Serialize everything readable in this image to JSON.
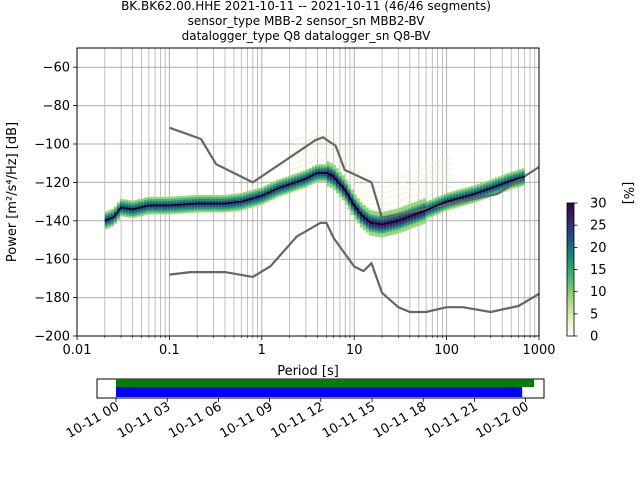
{
  "title_lines": [
    "BK.BK62.00.HHE   2021-10-11 -- 2021-10-11  (46/46 segments)",
    "sensor_type MBB-2 sensor_sn MBB2-BV",
    "datalogger_type Q8 datalogger_sn Q8-BV"
  ],
  "colors": {
    "mean": "#000000",
    "noise_models": "#666666",
    "grid": "#b0b0b0",
    "coverage_top": "#008000",
    "coverage_bottom": "#0000ff",
    "colormap": [
      "#ffffff",
      "#e4f2c0",
      "#9ad27a",
      "#3fb56c",
      "#16877c",
      "#1f4f82",
      "#3a1d67",
      "#2d0a3f"
    ]
  },
  "chart_data": {
    "type": "heatmap",
    "xlabel": "Period [s]",
    "ylabel": "Power [m²/s⁴/Hz] [dB]",
    "xscale": "log",
    "xlim": [
      0.01,
      1000
    ],
    "ylim": [
      -200,
      -50
    ],
    "xticks": [
      {
        "value": 0.01,
        "label": "0.01"
      },
      {
        "value": 0.1,
        "label": "0.1"
      },
      {
        "value": 1,
        "label": "1"
      },
      {
        "value": 10,
        "label": "10"
      },
      {
        "value": 100,
        "label": "100"
      },
      {
        "value": 1000,
        "label": "1000"
      }
    ],
    "yticks": [
      -60,
      -80,
      -100,
      -120,
      -140,
      -160,
      -180,
      -200
    ],
    "ytick_labels": [
      "−60",
      "−80",
      "−100",
      "−120",
      "−140",
      "−160",
      "−180",
      "−200"
    ],
    "grid": true,
    "colorbar": {
      "label": "[%]",
      "range": [
        0,
        30
      ],
      "ticks": [
        0,
        5,
        10,
        15,
        20,
        25,
        30
      ]
    },
    "mean_curve": [
      [
        0.02,
        -140
      ],
      [
        0.025,
        -138
      ],
      [
        0.03,
        -133
      ],
      [
        0.04,
        -134
      ],
      [
        0.06,
        -132
      ],
      [
        0.1,
        -132
      ],
      [
        0.2,
        -131
      ],
      [
        0.4,
        -131
      ],
      [
        0.6,
        -130
      ],
      [
        1,
        -127
      ],
      [
        1.5,
        -123
      ],
      [
        2,
        -121
      ],
      [
        3,
        -118
      ],
      [
        4,
        -115
      ],
      [
        5,
        -115
      ],
      [
        6,
        -117
      ],
      [
        8,
        -124
      ],
      [
        10,
        -132
      ],
      [
        12,
        -137
      ],
      [
        15,
        -141
      ],
      [
        20,
        -142
      ],
      [
        30,
        -140
      ],
      [
        50,
        -136
      ],
      [
        80,
        -132
      ],
      [
        100,
        -130
      ],
      [
        200,
        -126
      ],
      [
        300,
        -123
      ],
      [
        500,
        -119
      ],
      [
        700,
        -117
      ]
    ],
    "noise_model_high": [
      [
        0.1,
        -91.5
      ],
      [
        0.22,
        -97.4
      ],
      [
        0.32,
        -110.5
      ],
      [
        0.8,
        -120
      ],
      [
        3.8,
        -98
      ],
      [
        4.6,
        -96.5
      ],
      [
        6.3,
        -101
      ],
      [
        7.9,
        -113.5
      ],
      [
        15.4,
        -120
      ],
      [
        20,
        -138.5
      ],
      [
        354.8,
        -126
      ],
      [
        1000,
        -112
      ]
    ],
    "noise_model_low": [
      [
        0.1,
        -168
      ],
      [
        0.17,
        -166.7
      ],
      [
        0.4,
        -166.7
      ],
      [
        0.8,
        -169.2
      ],
      [
        1.24,
        -163.7
      ],
      [
        2.4,
        -148.1
      ],
      [
        4.3,
        -141.1
      ],
      [
        5.0,
        -141.1
      ],
      [
        6.0,
        -149.0
      ],
      [
        10.0,
        -163.8
      ],
      [
        12.6,
        -166.2
      ],
      [
        15.4,
        -162.1
      ],
      [
        20.0,
        -177.5
      ],
      [
        30.0,
        -185.0
      ],
      [
        40,
        -187.5
      ],
      [
        60,
        -187.5
      ],
      [
        100,
        -185
      ],
      [
        150,
        -185
      ],
      [
        300,
        -187.5
      ],
      [
        600,
        -184.4
      ],
      [
        1000,
        -178
      ]
    ],
    "time_axis": {
      "ticks": [
        "10-11 00",
        "10-11 03",
        "10-11 06",
        "10-11 09",
        "10-11 12",
        "10-11 15",
        "10-11 18",
        "10-11 21",
        "10-12 00"
      ],
      "data_coverage_end_hours": 24.5,
      "processed_coverage_end_hours": 23.8
    }
  }
}
